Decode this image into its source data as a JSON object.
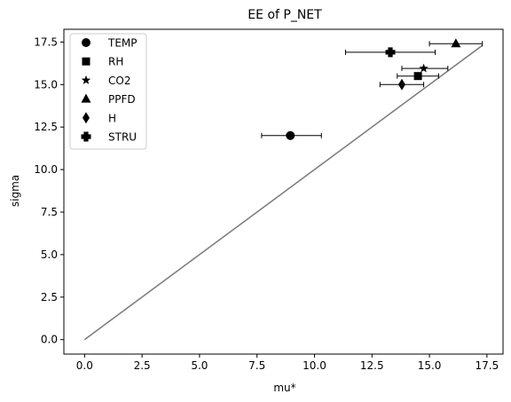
{
  "chart_data": {
    "type": "scatter",
    "title": "EE of P_NET",
    "xlabel": "mu*",
    "ylabel": "sigma",
    "xlim": [
      -0.9,
      18.2
    ],
    "ylim": [
      -0.85,
      18.25
    ],
    "xticks": [
      0.0,
      2.5,
      5.0,
      7.5,
      10.0,
      12.5,
      15.0,
      17.5
    ],
    "xtick_labels": [
      "0.0",
      "2.5",
      "5.0",
      "7.5",
      "10.0",
      "12.5",
      "15.0",
      "17.5"
    ],
    "yticks": [
      0.0,
      2.5,
      5.0,
      7.5,
      10.0,
      12.5,
      15.0,
      17.5
    ],
    "ytick_labels": [
      "0.0",
      "2.5",
      "5.0",
      "7.5",
      "10.0",
      "12.5",
      "15.0",
      "17.5"
    ],
    "grid": false,
    "legend_position": "top-left",
    "reference_line": {
      "x": [
        0,
        17.3
      ],
      "y": [
        0,
        17.3
      ],
      "color": "#808080"
    },
    "series": [
      {
        "name": "TEMP",
        "marker": "circle",
        "x": 8.95,
        "y": 12.0,
        "xerr_low": 7.7,
        "xerr_high": 10.3
      },
      {
        "name": "RH",
        "marker": "square",
        "x": 14.5,
        "y": 15.5,
        "xerr_low": 13.6,
        "xerr_high": 15.4
      },
      {
        "name": "CO2",
        "marker": "star",
        "x": 14.75,
        "y": 15.95,
        "xerr_low": 13.8,
        "xerr_high": 15.8
      },
      {
        "name": "PPFD",
        "marker": "triangle",
        "x": 16.15,
        "y": 17.4,
        "xerr_low": 15.0,
        "xerr_high": 17.3
      },
      {
        "name": "H",
        "marker": "diamond",
        "x": 13.8,
        "y": 15.0,
        "xerr_low": 12.85,
        "xerr_high": 14.75
      },
      {
        "name": "STRU",
        "marker": "plus",
        "x": 13.3,
        "y": 16.9,
        "xerr_low": 11.35,
        "xerr_high": 15.25
      }
    ]
  },
  "colors": {
    "markers": "#000000",
    "reference_line": "#808080",
    "legend_border": "#cccccc"
  },
  "icons": {
    "circle": "circle-marker-icon",
    "square": "square-marker-icon",
    "star": "star-marker-icon",
    "triangle": "triangle-marker-icon",
    "diamond": "diamond-marker-icon",
    "plus": "plus-marker-icon"
  }
}
